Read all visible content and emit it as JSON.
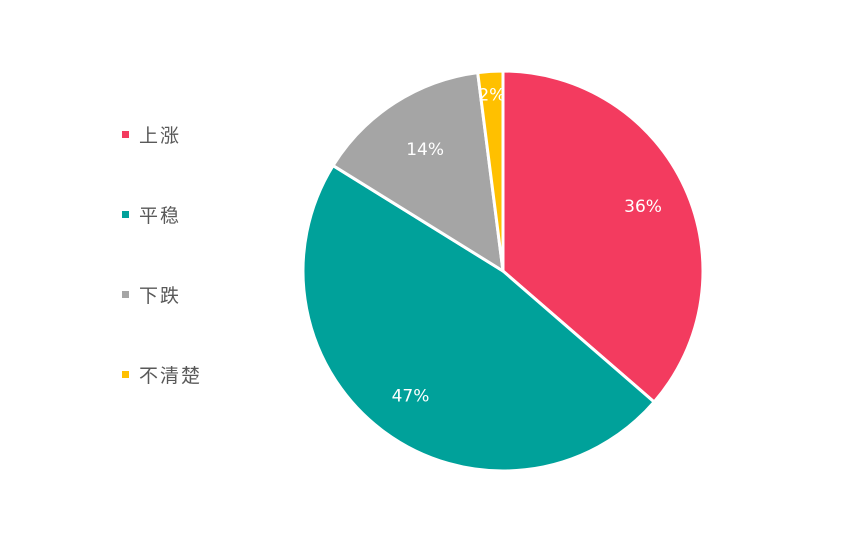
{
  "chart_data": {
    "type": "pie",
    "title": "",
    "series": [
      {
        "name": "上涨",
        "value": 36,
        "label": "36%",
        "color": "#f33b5f"
      },
      {
        "name": "平稳",
        "value": 47,
        "label": "47%",
        "color": "#00a19a"
      },
      {
        "name": "下跌",
        "value": 14,
        "label": "14%",
        "color": "#a5a5a5"
      },
      {
        "name": "不清楚",
        "value": 2,
        "label": "2%",
        "color": "#ffc000"
      }
    ],
    "legend_position": "left",
    "start_angle": "top",
    "direction": "clockwise"
  }
}
